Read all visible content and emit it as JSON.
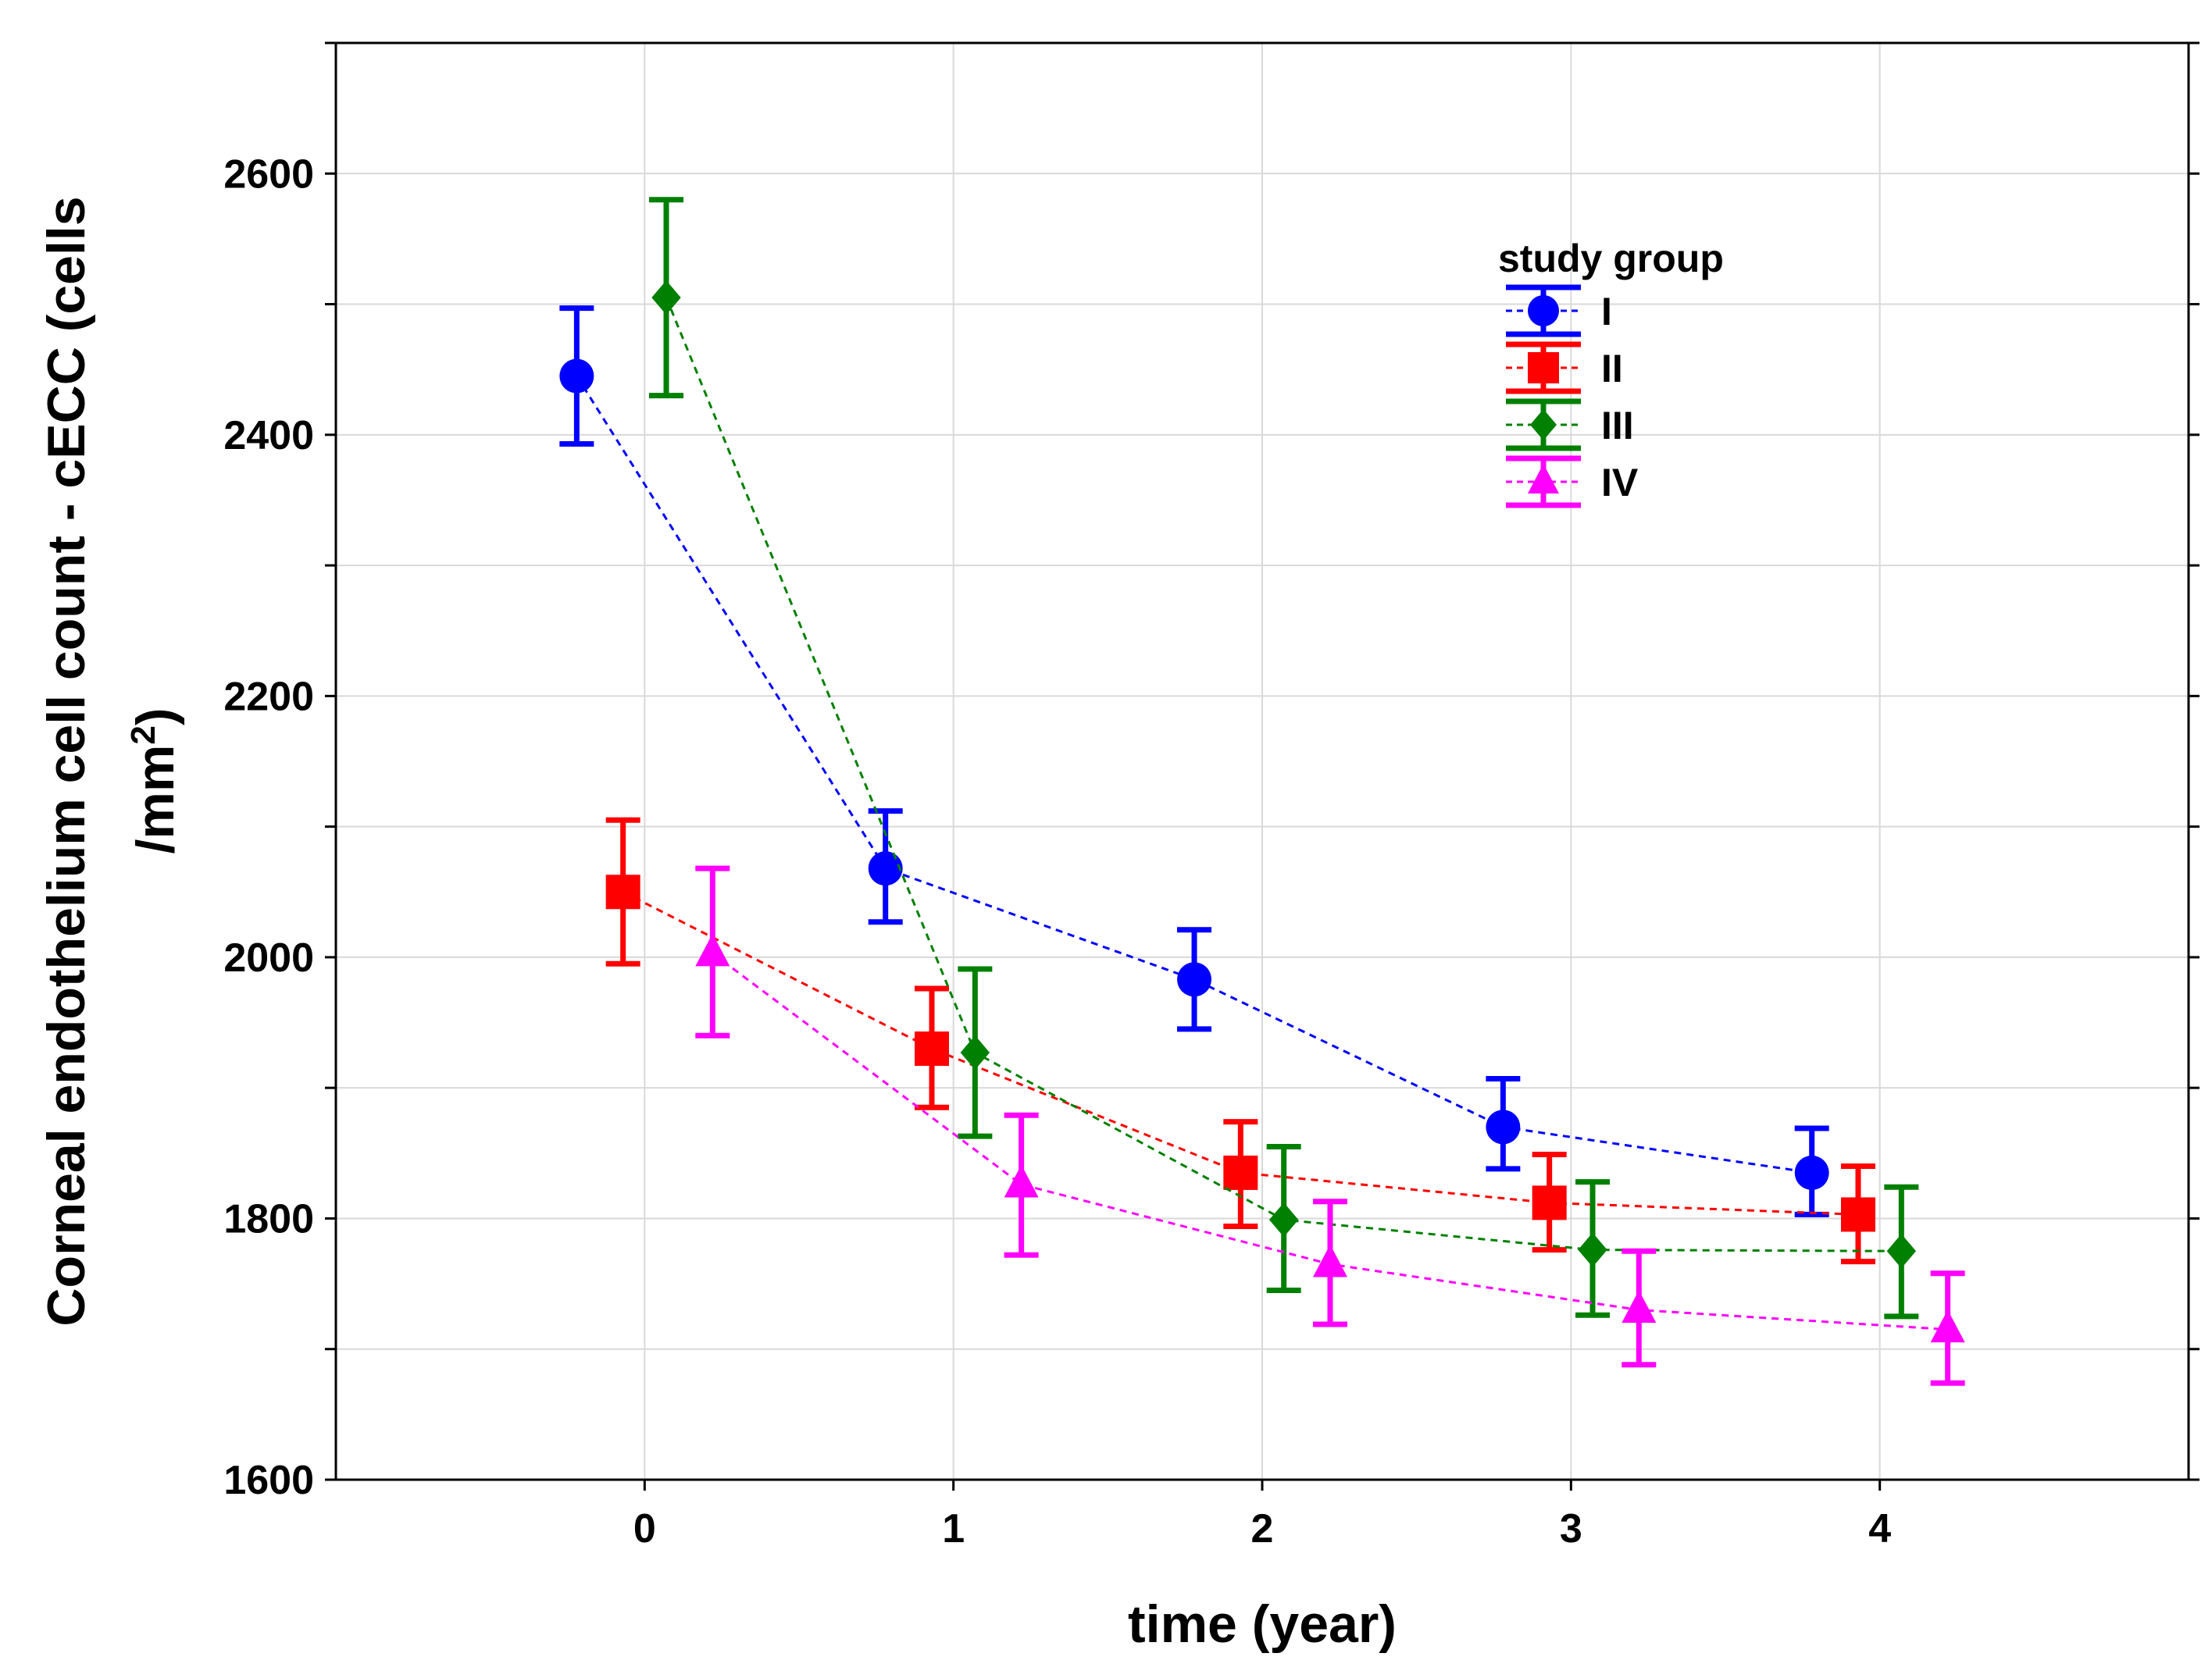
{
  "chart_data": {
    "type": "line",
    "title": "",
    "xlabel": "time (year)",
    "ylabel": "Corneal endothelium cell count  - cECC (cells",
    "ylabel_line2": "/mm",
    "ylabel_line2_sup": "2",
    "ylabel_line2_close": ")",
    "xlim": [
      -1,
      5
    ],
    "ylim": [
      1600,
      2700
    ],
    "xticks": [
      0,
      1,
      2,
      3,
      4
    ],
    "yticks": [
      1600,
      1800,
      2000,
      2200,
      2400,
      2600
    ],
    "grid": true,
    "legend": {
      "title": "study group",
      "position": "top-right"
    },
    "series": [
      {
        "name": "I",
        "color": "#0000ff",
        "marker": "circle",
        "offset": -0.22,
        "x": [
          0,
          1,
          2,
          3,
          4
        ],
        "y": [
          2445,
          2068,
          1983,
          1870,
          1835
        ],
        "lower": [
          2393,
          2027,
          1945,
          1838,
          1803
        ],
        "upper": [
          2497,
          2112,
          2021,
          1907,
          1869
        ]
      },
      {
        "name": "II",
        "color": "#ff0000",
        "marker": "square",
        "offset": -0.07,
        "x": [
          0,
          1,
          2,
          3,
          4
        ],
        "y": [
          2050,
          1930,
          1835,
          1812,
          1803
        ],
        "lower": [
          1995,
          1885,
          1794,
          1776,
          1767
        ],
        "upper": [
          2105,
          1976,
          1874,
          1849,
          1840
        ]
      },
      {
        "name": "III",
        "color": "#008000",
        "marker": "diamond",
        "offset": 0.07,
        "x": [
          0,
          1,
          2,
          3,
          4
        ],
        "y": [
          2505,
          1927,
          1799,
          1776,
          1775
        ],
        "lower": [
          2430,
          1863,
          1745,
          1726,
          1725
        ],
        "upper": [
          2580,
          1991,
          1855,
          1828,
          1824
        ]
      },
      {
        "name": "IV",
        "color": "#ff00ff",
        "marker": "triangle",
        "offset": 0.22,
        "x": [
          0,
          1,
          2,
          3,
          4
        ],
        "y": [
          2003,
          1826,
          1765,
          1730,
          1715
        ],
        "lower": [
          1940,
          1772,
          1719,
          1688,
          1674
        ],
        "upper": [
          2068,
          1879,
          1813,
          1775,
          1758
        ]
      }
    ]
  }
}
